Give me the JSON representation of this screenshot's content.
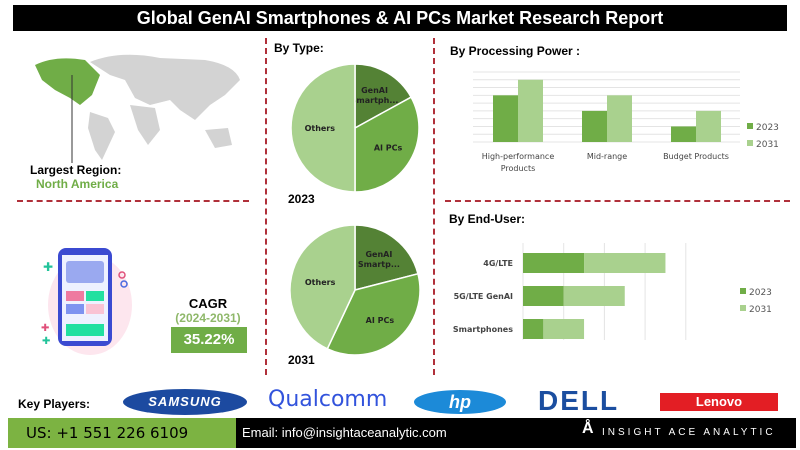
{
  "title": "Global GenAI Smartphones & AI PCs Market Research Report",
  "region": {
    "label": "Largest Region:",
    "value": "North America"
  },
  "cagr": {
    "label": "CAGR",
    "period": "(2024-2031)",
    "value": "35.22%"
  },
  "colors": {
    "dark": "#548235",
    "mid": "#70ad47",
    "light": "#a9d18e",
    "accent": "#70ad47",
    "divider": "#b0303a"
  },
  "by_type": {
    "title": "By Type:"
  },
  "by_processing": {
    "title": "By Processing Power :"
  },
  "by_end_user": {
    "title": "By End-User:"
  },
  "chart_data": [
    {
      "type": "pie",
      "title": "2023",
      "labels": [
        "GenAI Smartph...",
        "AI PCs",
        "Others"
      ],
      "values": [
        17,
        33,
        50
      ]
    },
    {
      "type": "pie",
      "title": "2031",
      "labels": [
        "GenAI Smartp...",
        "AI PCs",
        "Others"
      ],
      "values": [
        21,
        36,
        43
      ]
    },
    {
      "type": "bar",
      "categories": [
        "High-performance Products",
        "Mid-range",
        "Budget Products"
      ],
      "series": [
        {
          "name": "2023",
          "values": [
            6,
            4,
            2
          ]
        },
        {
          "name": "2031",
          "values": [
            8,
            6,
            4
          ]
        }
      ],
      "ylim": [
        0,
        9
      ],
      "grid": true,
      "legend": "right"
    },
    {
      "type": "bar",
      "orientation": "horizontal",
      "stacked": true,
      "categories": [
        "4G/LTE",
        "5G/LTE GenAI",
        "Smartphones"
      ],
      "series": [
        {
          "name": "2023",
          "values": [
            1.5,
            1,
            0.5
          ]
        },
        {
          "name": "2031",
          "values": [
            2,
            1.5,
            1
          ]
        }
      ],
      "xlim": [
        0,
        4
      ],
      "grid": true,
      "legend": "right"
    }
  ],
  "footer": {
    "key_players_label": "Key Players:",
    "players": [
      "SAMSUNG",
      "Qualcomm",
      "hp",
      "DELL",
      "Lenovo"
    ],
    "phone": "US: +1 551 226 6109",
    "email": "Email: info@insightaceanalytic.com",
    "brand": "INSIGHT ACE ANALYTIC"
  }
}
